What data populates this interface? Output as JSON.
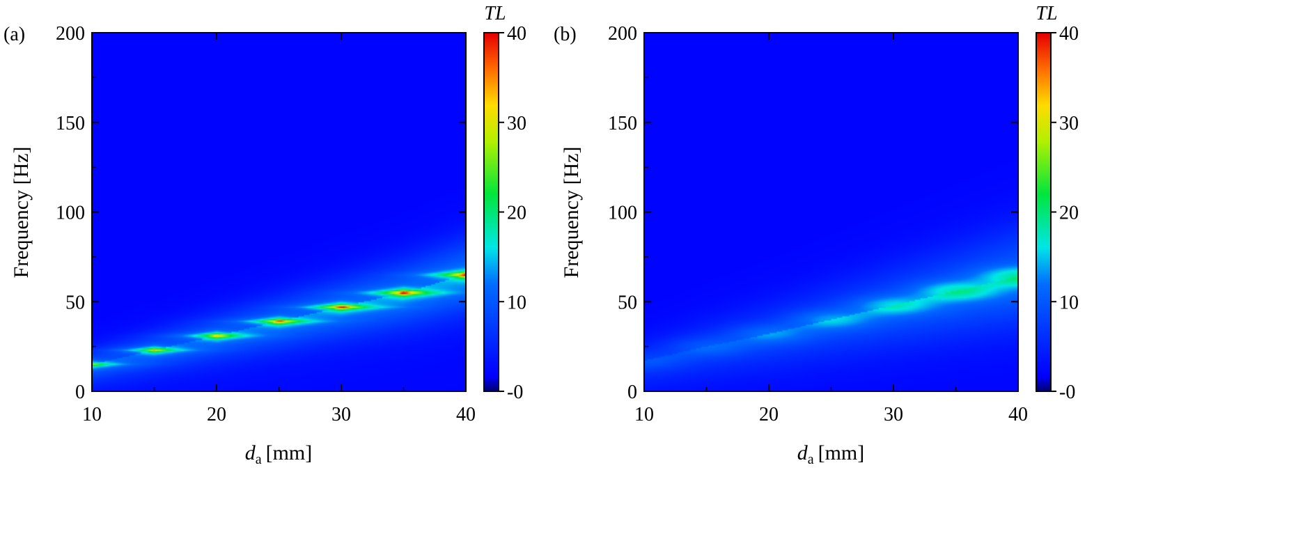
{
  "chart_data": [
    {
      "type": "heatmap",
      "panel_label": "(a)",
      "xlabel_main": "d",
      "xlabel_sub": "a",
      "xlabel_unit": "[mm]",
      "ylabel": "Frequency [Hz]",
      "xlim": [
        10,
        40
      ],
      "ylim": [
        0,
        200
      ],
      "xticks": [
        "10",
        "20",
        "30",
        "40"
      ],
      "yticks": [
        "0",
        "50",
        "100",
        "150",
        "200"
      ],
      "colorbar": {
        "title": "TL",
        "range": [
          0,
          40
        ],
        "ticks": [
          "-0",
          "10",
          "20",
          "30",
          "40"
        ]
      },
      "background_tl": 2,
      "resonances": [
        {
          "x": 10,
          "y": 15,
          "tl": 22
        },
        {
          "x": 15,
          "y": 23,
          "tl": 27
        },
        {
          "x": 20,
          "y": 31,
          "tl": 30
        },
        {
          "x": 25,
          "y": 39,
          "tl": 33
        },
        {
          "x": 30,
          "y": 47,
          "tl": 35
        },
        {
          "x": 35,
          "y": 55,
          "tl": 38
        },
        {
          "x": 40,
          "y": 65,
          "tl": 39
        }
      ]
    },
    {
      "type": "heatmap",
      "panel_label": "(b)",
      "xlabel_main": "d",
      "xlabel_sub": "a",
      "xlabel_unit": "[mm]",
      "ylabel": "Frequency [Hz]",
      "xlim": [
        10,
        40
      ],
      "ylim": [
        0,
        200
      ],
      "xticks": [
        "10",
        "20",
        "30",
        "40"
      ],
      "yticks": [
        "0",
        "50",
        "100",
        "150",
        "200"
      ],
      "colorbar": {
        "title": "TL",
        "range": [
          0,
          40
        ],
        "ticks": [
          "-0",
          "10",
          "20",
          "30",
          "40"
        ]
      },
      "background_tl": 2,
      "resonances": [
        {
          "x": 10,
          "y": 17,
          "tl": 5
        },
        {
          "x": 15,
          "y": 25,
          "tl": 6
        },
        {
          "x": 20,
          "y": 32,
          "tl": 7
        },
        {
          "x": 25,
          "y": 40,
          "tl": 8
        },
        {
          "x": 30,
          "y": 48,
          "tl": 9
        },
        {
          "x": 35,
          "y": 56,
          "tl": 10
        },
        {
          "x": 40,
          "y": 64,
          "tl": 10
        }
      ]
    }
  ]
}
